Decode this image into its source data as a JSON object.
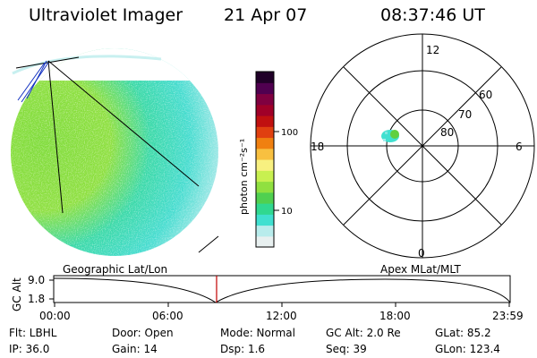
{
  "header": {
    "instrument": "Ultraviolet Imager",
    "date": "21 Apr 07",
    "time": "08:37:46 UT"
  },
  "colorbar": {
    "label": "photon cm⁻²s⁻¹",
    "ticks": [
      "100",
      "10"
    ],
    "colors": [
      "#e8f0f0",
      "#b8ecec",
      "#40e0d0",
      "#30d890",
      "#50d050",
      "#90e040",
      "#c8f050",
      "#f8f080",
      "#f8c040",
      "#f08010",
      "#e04010",
      "#c01010",
      "#a00028",
      "#800040",
      "#500050",
      "#200028"
    ]
  },
  "polar": {
    "mlt_labels": [
      "12",
      "18",
      "6",
      "0"
    ],
    "lat_labels": [
      "60",
      "70",
      "80"
    ]
  },
  "timeline": {
    "left_title": "Geographic Lat/Lon",
    "right_title": "Apex MLat/MLT",
    "axis_label": "GC Alt",
    "y_ticks": [
      "9.0",
      "1.8"
    ],
    "x_ticks": [
      "00:00",
      "06:00",
      "12:00",
      "18:00",
      "23:59"
    ],
    "marker_color": "#c00000"
  },
  "info": {
    "flt": "Flt: LBHL",
    "ip": "IP: 36.0",
    "door": "Door: Open",
    "gain": "Gain: 14",
    "mode": "Mode: Normal",
    "dsp": "Dsp:    1.6",
    "gcalt": "GC Alt: 2.0 Re",
    "seq": "Seq: 39",
    "glat": "GLat:  85.2",
    "glon": "GLon: 123.4"
  }
}
